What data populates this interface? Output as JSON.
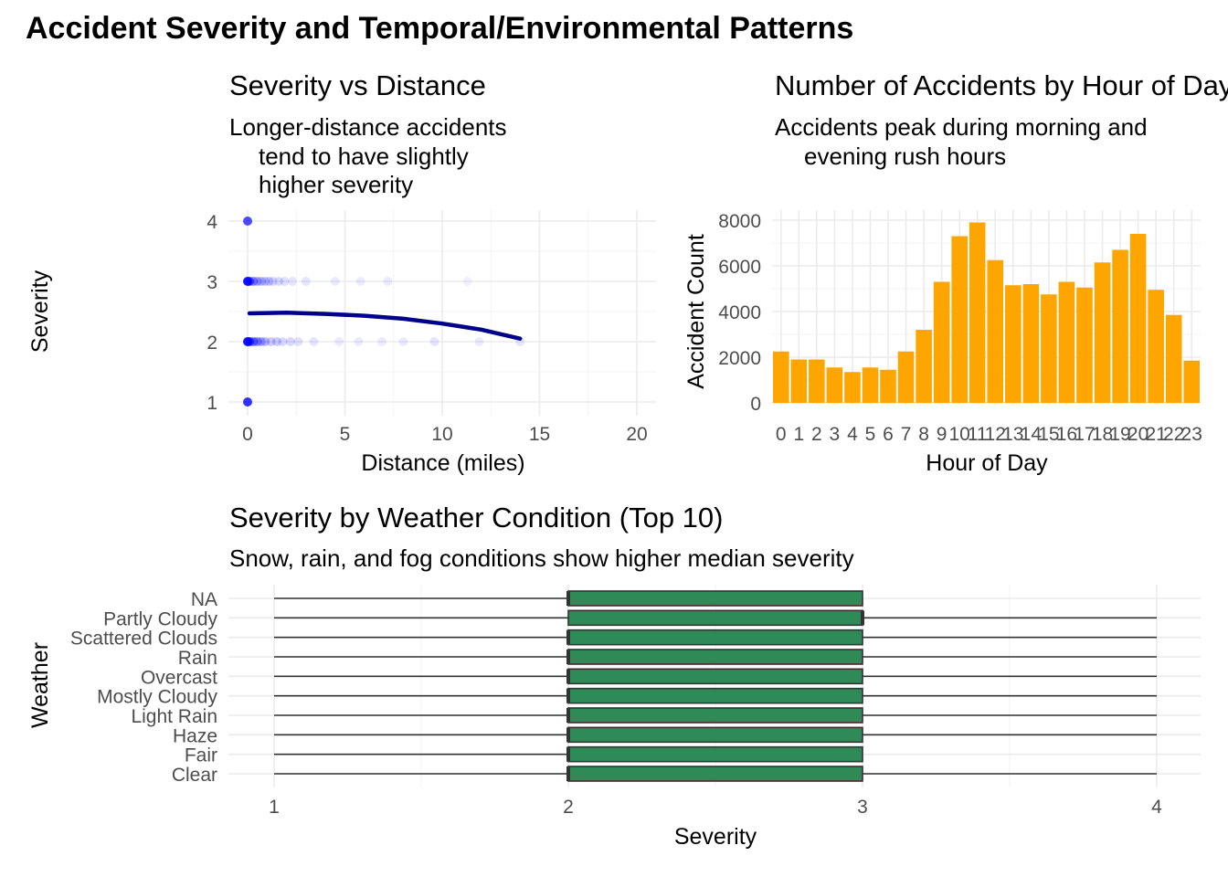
{
  "main_title": "Accident Severity and Temporal/Environmental Patterns",
  "chart_data": [
    {
      "type": "scatter",
      "title": "Severity vs Distance",
      "subtitle_lines": [
        "Longer-distance accidents",
        "tend to have slightly",
        "higher severity"
      ],
      "xlabel": "Distance (miles)",
      "ylabel": "Severity",
      "xlim": [
        0,
        20
      ],
      "ylim": [
        1,
        4
      ],
      "x_ticks": [
        0,
        5,
        10,
        15,
        20
      ],
      "y_ticks": [
        1,
        2,
        3,
        4
      ],
      "point_color": "#0000ff",
      "points": [
        {
          "x": 0,
          "y": 4,
          "opacity": 0.7
        },
        {
          "x": 0,
          "y": 1,
          "opacity": 0.8
        },
        {
          "x": 0,
          "y": 3,
          "opacity": 0.9
        },
        {
          "x": 0.1,
          "y": 3,
          "opacity": 0.6
        },
        {
          "x": 0.3,
          "y": 3,
          "opacity": 0.4
        },
        {
          "x": 0.5,
          "y": 3,
          "opacity": 0.3
        },
        {
          "x": 0.7,
          "y": 3,
          "opacity": 0.25
        },
        {
          "x": 0.9,
          "y": 3,
          "opacity": 0.2
        },
        {
          "x": 1.1,
          "y": 3,
          "opacity": 0.2
        },
        {
          "x": 1.3,
          "y": 3,
          "opacity": 0.15
        },
        {
          "x": 1.6,
          "y": 3,
          "opacity": 0.15
        },
        {
          "x": 1.9,
          "y": 3,
          "opacity": 0.12
        },
        {
          "x": 2.3,
          "y": 3,
          "opacity": 0.1
        },
        {
          "x": 3.0,
          "y": 3,
          "opacity": 0.1
        },
        {
          "x": 4.5,
          "y": 3,
          "opacity": 0.08
        },
        {
          "x": 5.8,
          "y": 3,
          "opacity": 0.08
        },
        {
          "x": 7.2,
          "y": 3,
          "opacity": 0.08
        },
        {
          "x": 11.3,
          "y": 3,
          "opacity": 0.06
        },
        {
          "x": 0,
          "y": 2,
          "opacity": 0.9
        },
        {
          "x": 0.1,
          "y": 2,
          "opacity": 0.7
        },
        {
          "x": 0.3,
          "y": 2,
          "opacity": 0.5
        },
        {
          "x": 0.5,
          "y": 2,
          "opacity": 0.4
        },
        {
          "x": 0.7,
          "y": 2,
          "opacity": 0.3
        },
        {
          "x": 0.9,
          "y": 2,
          "opacity": 0.25
        },
        {
          "x": 1.2,
          "y": 2,
          "opacity": 0.2
        },
        {
          "x": 1.5,
          "y": 2,
          "opacity": 0.2
        },
        {
          "x": 1.8,
          "y": 2,
          "opacity": 0.15
        },
        {
          "x": 2.2,
          "y": 2,
          "opacity": 0.15
        },
        {
          "x": 2.6,
          "y": 2,
          "opacity": 0.12
        },
        {
          "x": 3.4,
          "y": 2,
          "opacity": 0.1
        },
        {
          "x": 4.7,
          "y": 2,
          "opacity": 0.08
        },
        {
          "x": 5.7,
          "y": 2,
          "opacity": 0.08
        },
        {
          "x": 6.9,
          "y": 2,
          "opacity": 0.08
        },
        {
          "x": 8.0,
          "y": 2,
          "opacity": 0.08
        },
        {
          "x": 9.6,
          "y": 2,
          "opacity": 0.1
        },
        {
          "x": 11.9,
          "y": 2,
          "opacity": 0.08
        },
        {
          "x": 14.0,
          "y": 2,
          "opacity": 0.1
        }
      ],
      "trend_color": "#00008b",
      "trend": {
        "x": [
          0.1,
          2,
          4,
          6,
          8,
          10,
          12,
          14
        ],
        "y": [
          2.47,
          2.48,
          2.46,
          2.43,
          2.38,
          2.3,
          2.2,
          2.05
        ]
      }
    },
    {
      "type": "bar",
      "title": "Number of Accidents by Hour of Day",
      "subtitle_lines": [
        "Accidents peak during morning and",
        "evening rush hours"
      ],
      "xlabel": "Hour of Day",
      "ylabel": "Accident Count",
      "ylim": [
        0,
        8200
      ],
      "y_ticks": [
        0,
        2000,
        4000,
        6000,
        8000
      ],
      "bar_color": "#ffa500",
      "categories": [
        "0",
        "1",
        "2",
        "3",
        "4",
        "5",
        "6",
        "7",
        "8",
        "9",
        "10",
        "11",
        "12",
        "13",
        "14",
        "15",
        "16",
        "17",
        "18",
        "19",
        "20",
        "21",
        "22",
        "23"
      ],
      "values": [
        2250,
        1900,
        1900,
        1550,
        1350,
        1550,
        1450,
        2250,
        3200,
        5300,
        7300,
        7900,
        6250,
        5150,
        5200,
        4750,
        5300,
        5050,
        6150,
        6700,
        7400,
        4950,
        3850,
        1850
      ]
    },
    {
      "type": "boxplot",
      "title": "Severity by Weather Condition (Top 10)",
      "subtitle": "Snow, rain, and fog conditions show higher median severity",
      "xlabel": "Severity",
      "ylabel": "Weather",
      "xlim": [
        1,
        4
      ],
      "x_ticks": [
        1,
        2,
        3,
        4
      ],
      "box_color": "#2e8b57",
      "categories": [
        "NA",
        "Partly Cloudy",
        "Scattered Clouds",
        "Rain",
        "Overcast",
        "Mostly Cloudy",
        "Light Rain",
        "Haze",
        "Fair",
        "Clear"
      ],
      "boxes": [
        {
          "min": 1,
          "q1": 2,
          "median": 2,
          "q3": 3,
          "max": 3
        },
        {
          "min": 1,
          "q1": 2,
          "median": 3,
          "q3": 3,
          "max": 4
        },
        {
          "min": 1,
          "q1": 2,
          "median": 2,
          "q3": 3,
          "max": 4
        },
        {
          "min": 1,
          "q1": 2,
          "median": 2,
          "q3": 3,
          "max": 4
        },
        {
          "min": 1,
          "q1": 2,
          "median": 2,
          "q3": 3,
          "max": 4
        },
        {
          "min": 1,
          "q1": 2,
          "median": 2,
          "q3": 3,
          "max": 4
        },
        {
          "min": 1,
          "q1": 2,
          "median": 2,
          "q3": 3,
          "max": 4
        },
        {
          "min": 1,
          "q1": 2,
          "median": 2,
          "q3": 3,
          "max": 4
        },
        {
          "min": 1,
          "q1": 2,
          "median": 2,
          "q3": 3,
          "max": 3
        },
        {
          "min": 1,
          "q1": 2,
          "median": 2,
          "q3": 3,
          "max": 4
        }
      ]
    }
  ]
}
